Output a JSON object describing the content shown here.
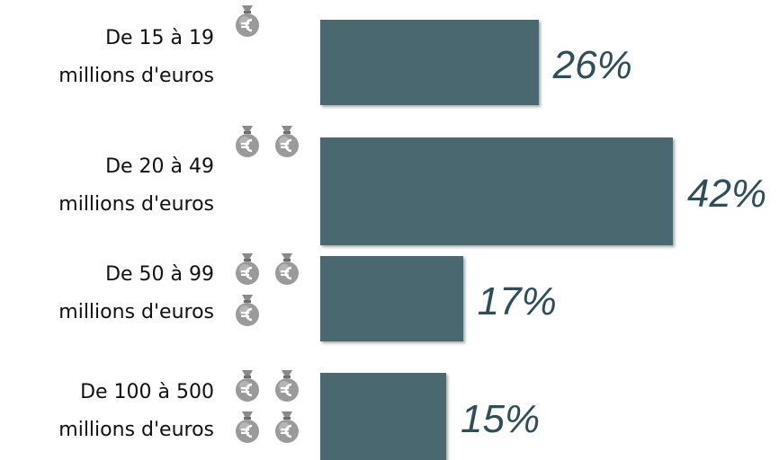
{
  "chart_data": {
    "type": "bar",
    "categories": [
      "De 15 à 19\nmillions d'euros",
      "De 20 à 49\nmillions d'euros",
      "De 50 à 99\nmillions d'euros",
      "De 100 à 500\nmillions d'euros"
    ],
    "values": [
      26,
      42,
      17,
      15
    ],
    "value_labels": [
      "26%",
      "42%",
      "17%",
      "15%"
    ],
    "color": "#4a6870"
  }
}
